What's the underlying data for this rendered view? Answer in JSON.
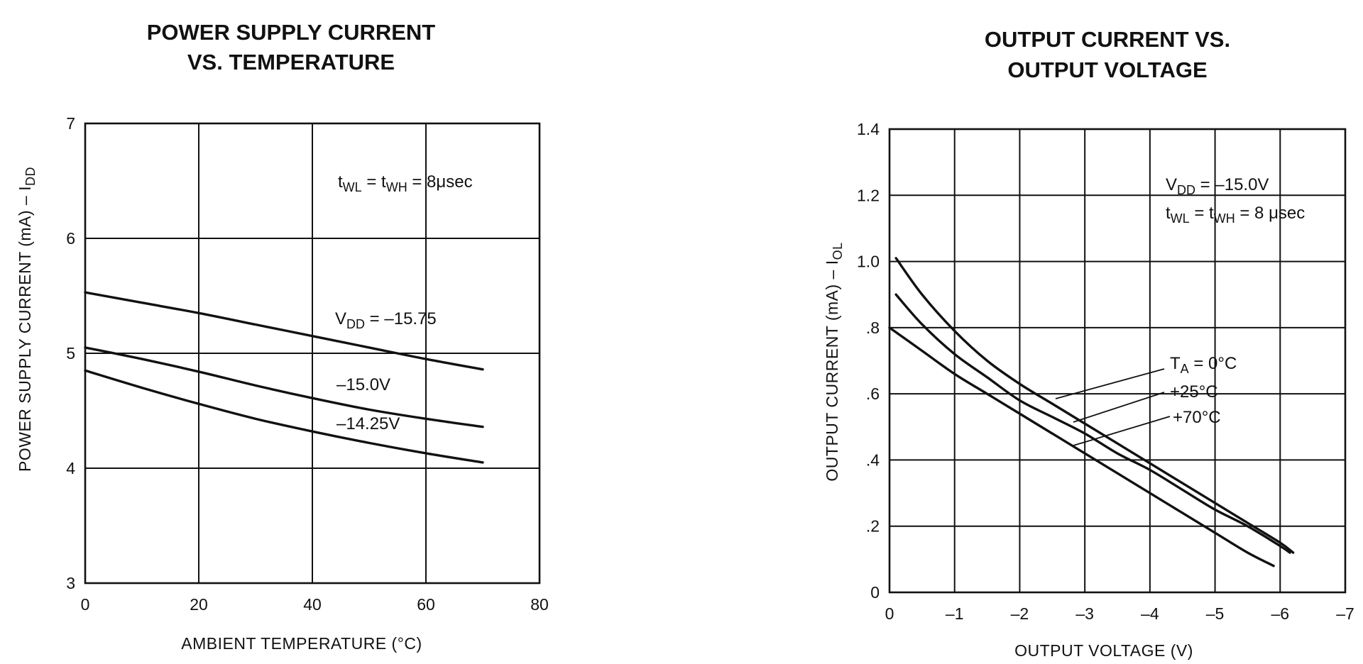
{
  "chart_data": [
    {
      "type": "line",
      "title_lines": [
        "POWER SUPPLY CURRENT",
        "VS. TEMPERATURE"
      ],
      "xlabel": "AMBIENT TEMPERATURE (°C)",
      "ylabel_main": "POWER SUPPLY CURRENT (mA) – I",
      "ylabel_sub": "DD",
      "xlim": [
        0,
        80
      ],
      "ylim": [
        3,
        7
      ],
      "x_ticks": [
        0,
        20,
        40,
        60,
        80
      ],
      "y_ticks": [
        3,
        4,
        5,
        6,
        7
      ],
      "grid": true,
      "condition": {
        "t1": "t",
        "s1": "WL",
        "eq1": " = t",
        "s2": "WH",
        "eq2": " = 8μsec"
      },
      "series": [
        {
          "label_prefix": "V",
          "label_sub": "DD",
          "label_rest": " = –15.75",
          "x": [
            0,
            10,
            20,
            30,
            40,
            50,
            60,
            70
          ],
          "values": [
            5.53,
            5.44,
            5.35,
            5.25,
            5.15,
            5.05,
            4.95,
            4.86
          ]
        },
        {
          "label_prefix": "",
          "label_sub": "",
          "label_rest": "–15.0V",
          "x": [
            0,
            10,
            20,
            30,
            40,
            50,
            60,
            70
          ],
          "values": [
            5.05,
            4.95,
            4.84,
            4.72,
            4.61,
            4.51,
            4.43,
            4.36
          ]
        },
        {
          "label_prefix": "",
          "label_sub": "",
          "label_rest": "–14.25V",
          "x": [
            0,
            10,
            20,
            30,
            40,
            50,
            60,
            70
          ],
          "values": [
            4.85,
            4.7,
            4.56,
            4.43,
            4.32,
            4.22,
            4.13,
            4.05
          ]
        }
      ]
    },
    {
      "type": "line",
      "title_lines": [
        "OUTPUT CURRENT VS.",
        "OUTPUT VOLTAGE"
      ],
      "xlabel": "OUTPUT VOLTAGE (V)",
      "ylabel_main": "OUTPUT CURRENT (mA) – I",
      "ylabel_sub": "OL",
      "xlim": [
        0,
        -7
      ],
      "ylim": [
        0,
        1.4
      ],
      "x_ticks": [
        0,
        -1,
        -2,
        -3,
        -4,
        -5,
        -6,
        -7
      ],
      "y_ticks": [
        0,
        0.2,
        0.4,
        0.6,
        0.8,
        1.0,
        1.2,
        1.4
      ],
      "x_tick_labels": [
        "0",
        "–1",
        "–2",
        "–3",
        "–4",
        "–5",
        "–6",
        "–7"
      ],
      "y_tick_labels": [
        "0",
        ".2",
        ".4",
        ".6",
        ".8",
        "1.0",
        "1.2",
        "1.4"
      ],
      "grid": true,
      "condition_lines": [
        {
          "t1": "V",
          "s1": "DD",
          "eq1": " = –15.0V",
          "s2": "",
          "eq2": ""
        },
        {
          "t1": "t",
          "s1": "WL",
          "eq1": " = t",
          "s2": "WH",
          "eq2": " = 8 μsec"
        }
      ],
      "series": [
        {
          "label_prefix": "T",
          "label_sub": "A",
          "label_rest": " = 0°C",
          "x": [
            -0.1,
            -0.5,
            -1,
            -1.5,
            -2,
            -2.5,
            -3,
            -3.5,
            -4,
            -4.5,
            -5,
            -5.5,
            -6,
            -6.2
          ],
          "values": [
            1.01,
            0.9,
            0.79,
            0.7,
            0.63,
            0.57,
            0.51,
            0.45,
            0.39,
            0.33,
            0.27,
            0.21,
            0.15,
            0.12
          ]
        },
        {
          "label_prefix": "",
          "label_sub": "",
          "label_rest": "+25°C",
          "x": [
            -0.1,
            -0.5,
            -1,
            -1.5,
            -2,
            -2.5,
            -3,
            -3.5,
            -4,
            -4.5,
            -5,
            -5.5,
            -6,
            -6.15
          ],
          "values": [
            0.9,
            0.81,
            0.72,
            0.65,
            0.58,
            0.53,
            0.48,
            0.42,
            0.37,
            0.31,
            0.25,
            0.2,
            0.14,
            0.12
          ]
        },
        {
          "label_prefix": "",
          "label_sub": "",
          "label_rest": "+70°C",
          "x": [
            0,
            -0.5,
            -1,
            -1.5,
            -2,
            -2.5,
            -3,
            -3.5,
            -4,
            -4.5,
            -5,
            -5.5,
            -5.9
          ],
          "values": [
            0.8,
            0.73,
            0.66,
            0.6,
            0.54,
            0.48,
            0.42,
            0.36,
            0.3,
            0.24,
            0.18,
            0.12,
            0.08
          ]
        }
      ]
    }
  ]
}
